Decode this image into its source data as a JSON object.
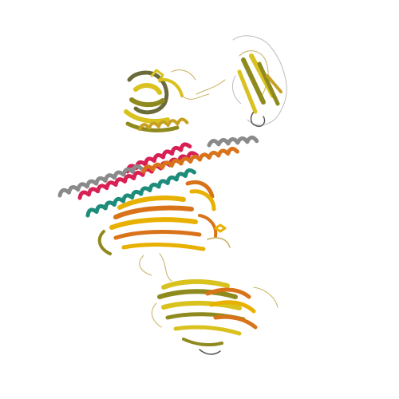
{
  "image": {
    "subject": "protein-ribbon-structure",
    "background": "#ffffff"
  },
  "colors": {
    "yellow": "#d9c21e",
    "gold": "#e8b000",
    "orange": "#d9731a",
    "olive": "#8f8a1e",
    "red": "#d82055",
    "teal": "#1e8c7a",
    "grey": "#8a8a8a",
    "wire": "#c8b060",
    "wire_grey": "#9a9a9a"
  }
}
